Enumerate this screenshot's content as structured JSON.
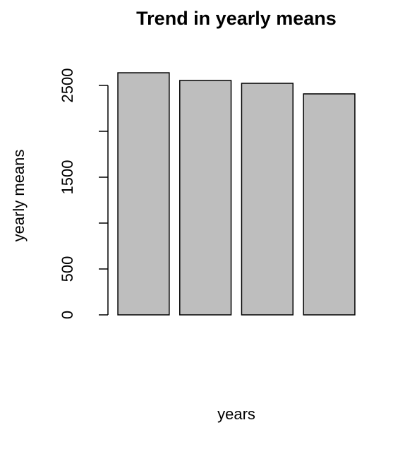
{
  "chart_data": {
    "type": "bar",
    "title": "Trend in yearly means",
    "xlabel": "years",
    "ylabel": "yearly means",
    "categories": [
      null,
      null,
      null,
      null
    ],
    "values": [
      2638,
      2554,
      2523,
      2408
    ],
    "color": "#bebebe",
    "ylim": [
      0,
      2700
    ],
    "yticks": [
      0,
      500,
      {
        "value": 1000,
        "label": null
      },
      1500,
      {
        "value": 2000,
        "label": null
      },
      2500
    ],
    "grid": false
  }
}
